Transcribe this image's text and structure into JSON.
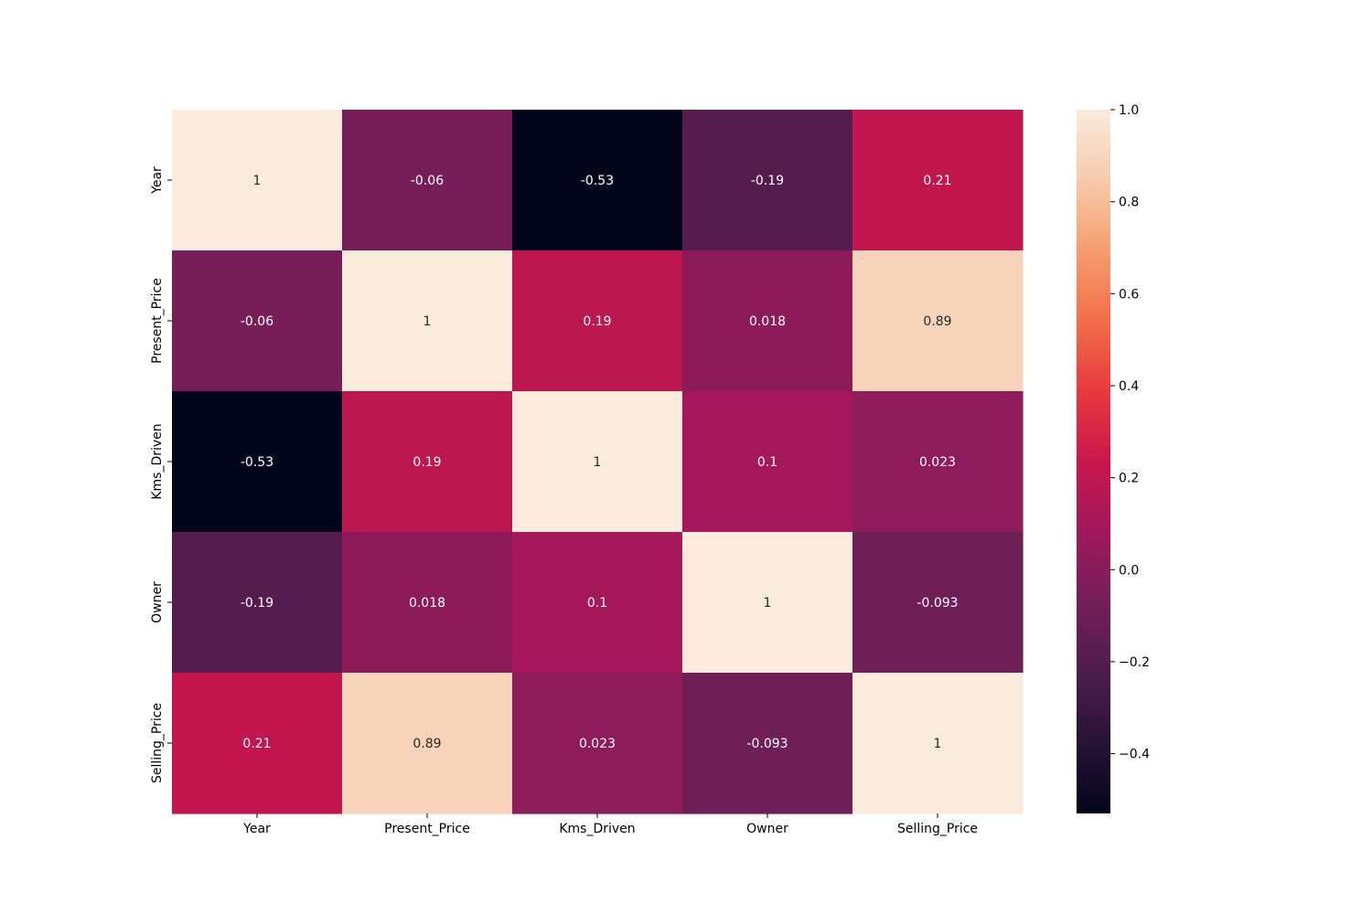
{
  "chart_data": {
    "type": "heatmap",
    "title": "",
    "xlabel": "",
    "ylabel": "",
    "x_categories": [
      "Year",
      "Present_Price",
      "Kms_Driven",
      "Owner",
      "Selling_Price"
    ],
    "y_categories": [
      "Year",
      "Present_Price",
      "Kms_Driven",
      "Owner",
      "Selling_Price"
    ],
    "values": [
      [
        1,
        -0.06,
        -0.53,
        -0.19,
        0.21
      ],
      [
        -0.06,
        1,
        0.19,
        0.018,
        0.89
      ],
      [
        -0.53,
        0.19,
        1,
        0.1,
        0.023
      ],
      [
        -0.19,
        0.018,
        0.1,
        1,
        -0.093
      ],
      [
        0.21,
        0.89,
        0.023,
        -0.093,
        1
      ]
    ],
    "annotations": [
      [
        "1",
        "-0.06",
        "-0.53",
        "-0.19",
        "0.21"
      ],
      [
        "-0.06",
        "1",
        "0.19",
        "0.018",
        "0.89"
      ],
      [
        "-0.53",
        "0.19",
        "1",
        "0.1",
        "0.023"
      ],
      [
        "-0.19",
        "0.018",
        "0.1",
        "1",
        "-0.093"
      ],
      [
        "0.21",
        "0.89",
        "0.023",
        "-0.093",
        "1"
      ]
    ],
    "colormap": "rocket",
    "colorbar": {
      "vmin": -0.53,
      "vmax": 1.0,
      "ticks": [
        1.0,
        0.8,
        0.6,
        0.4,
        0.2,
        0.0,
        -0.2,
        -0.4
      ],
      "tick_labels": [
        "1.0",
        "0.8",
        "0.6",
        "0.4",
        "0.2",
        "0.0",
        "−0.2",
        "−0.4"
      ]
    },
    "grid": false,
    "legend": "colorbar-right"
  }
}
